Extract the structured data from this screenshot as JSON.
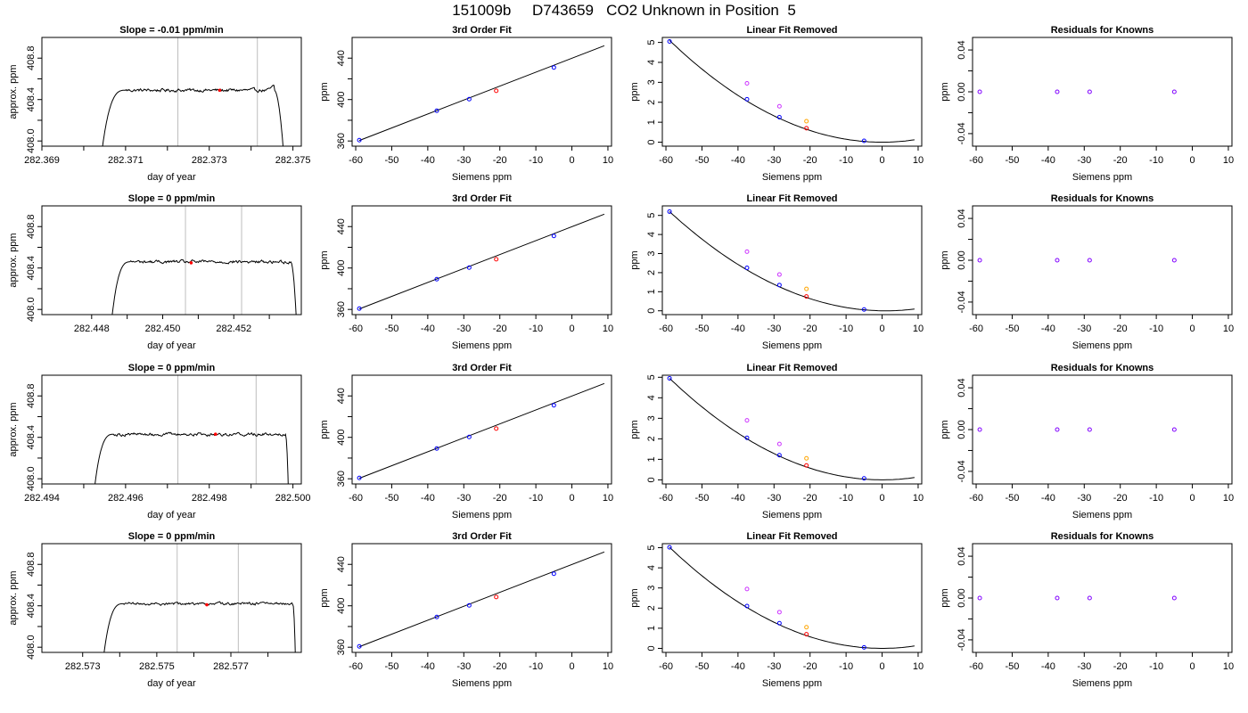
{
  "title": "151009b     D743659   CO2 Unknown in Position  5",
  "colors": {
    "trace": "#000000",
    "fit_line": "#000000",
    "known": "#0000ff",
    "unknown": "#ff0000",
    "raw_magenta": "#cc33ff",
    "raw_orange": "#ffa500",
    "residual": "#8000ff",
    "window_line": "#bebebe"
  },
  "chart_data": [
    {
      "type": "line",
      "panel": "trace",
      "row": 1,
      "title": "Slope =  -0.01  ppm/min",
      "xlabel": "day of year",
      "ylabel": "approx. ppm",
      "xlim": [
        282.369,
        282.3752
      ],
      "ylim": [
        407.95,
        409.0
      ],
      "xticks": [
        282.369,
        282.37,
        282.371,
        282.372,
        282.373,
        282.374,
        282.375
      ],
      "xtick_labels": [
        "282.369",
        "",
        "282.371",
        "",
        "282.373",
        "",
        "282.375"
      ],
      "yticks": [
        408.0,
        408.2,
        408.4,
        408.6,
        408.8
      ],
      "ytick_labels": [
        "408.0",
        "",
        "408.4",
        "",
        "408.8"
      ],
      "start": 282.37045,
      "rise_end": 282.371,
      "plateau_end": 282.37455,
      "end": 282.3748,
      "level": 408.49,
      "base": 407.95,
      "noise": 0.012,
      "bump": 0.04,
      "window": [
        282.37225,
        282.37415
      ],
      "marker": {
        "x": 282.37325,
        "y": 408.49
      }
    },
    {
      "type": "scatter",
      "panel": "fit",
      "row": 1,
      "title": "3rd Order Fit",
      "xlabel": "Siemens ppm",
      "ylabel": "ppm",
      "xlim": [
        -61,
        11
      ],
      "ylim": [
        355,
        460
      ],
      "xticks": [
        -60,
        -50,
        -40,
        -30,
        -20,
        -10,
        0,
        10
      ],
      "xtick_labels": [
        "-60",
        "-50",
        "-40",
        "-30",
        "-20",
        "-10",
        "0",
        "10"
      ],
      "yticks": [
        360,
        380,
        400,
        420,
        440
      ],
      "ytick_labels": [
        "360",
        "",
        "400",
        "",
        "440"
      ],
      "line": {
        "x": [
          -59,
          9
        ],
        "y": [
          360.5,
          452
        ]
      },
      "known": {
        "x": [
          -59,
          -37.5,
          -28.5,
          -5
        ],
        "y": [
          360.8,
          389.2,
          400.4,
          431.0
        ]
      },
      "unknown": {
        "x": [
          -21
        ],
        "y": [
          408.5
        ]
      }
    },
    {
      "type": "scatter",
      "panel": "linear-removed",
      "row": 1,
      "title": "Linear Fit Removed",
      "xlabel": "Siemens ppm",
      "ylabel": "ppm",
      "xlim": [
        -61,
        11
      ],
      "ylim": [
        -0.2,
        5.25
      ],
      "xticks": [
        -60,
        -50,
        -40,
        -30,
        -20,
        -10,
        0,
        10
      ],
      "xtick_labels": [
        "-60",
        "-50",
        "-40",
        "-30",
        "-20",
        "-10",
        "0",
        "10"
      ],
      "yticks": [
        0,
        1,
        2,
        3,
        4,
        5
      ],
      "ytick_labels": [
        "0",
        "1",
        "2",
        "3",
        "4",
        "5"
      ],
      "curve": {
        "vertex": 0,
        "x0": -59,
        "y0": 5.1,
        "xend": 9
      },
      "known": {
        "x": [
          -59,
          -37.5,
          -28.5,
          -5
        ],
        "y": [
          5.05,
          2.15,
          1.25,
          0.07
        ]
      },
      "unknown": {
        "x": [
          -21
        ],
        "y": [
          0.7
        ]
      },
      "raw_magenta": {
        "x": [
          -37.5,
          -28.5
        ],
        "y": [
          2.95,
          1.8
        ]
      },
      "raw_orange": {
        "x": [
          -21
        ],
        "y": [
          1.05
        ]
      }
    },
    {
      "type": "scatter",
      "panel": "residuals",
      "row": 1,
      "title": "Residuals for Knowns",
      "xlabel": "Siemens ppm",
      "ylabel": "ppm",
      "xlim": [
        -61,
        11
      ],
      "ylim": [
        -0.052,
        0.052
      ],
      "xticks": [
        -60,
        -50,
        -40,
        -30,
        -20,
        -10,
        0,
        10
      ],
      "xtick_labels": [
        "-60",
        "-50",
        "-40",
        "-30",
        "-20",
        "-10",
        "0",
        "10"
      ],
      "yticks": [
        -0.04,
        -0.02,
        0.0,
        0.02,
        0.04
      ],
      "ytick_labels": [
        "-0.04",
        "",
        "0.00",
        "",
        "0.04"
      ],
      "points": {
        "x": [
          -59,
          -37.5,
          -28.5,
          -5
        ],
        "y": [
          0,
          0,
          0,
          0
        ]
      }
    },
    {
      "type": "line",
      "panel": "trace",
      "row": 2,
      "title": "Slope =  0  ppm/min",
      "xlabel": "day of year",
      "ylabel": "approx. ppm",
      "xlim": [
        282.4466,
        282.4539
      ],
      "ylim": [
        407.95,
        409.0
      ],
      "xticks": [
        282.448,
        282.449,
        282.45,
        282.451,
        282.452,
        282.453
      ],
      "xtick_labels": [
        "282.448",
        "",
        "282.450",
        "",
        "282.452",
        ""
      ],
      "yticks": [
        408.0,
        408.2,
        408.4,
        408.6,
        408.8
      ],
      "ytick_labels": [
        "408.0",
        "",
        "408.4",
        "",
        "408.8"
      ],
      "start": 282.44858,
      "rise_end": 282.4491,
      "plateau_end": 282.4536,
      "end": 282.45378,
      "level": 408.46,
      "base": 407.95,
      "noise": 0.012,
      "bump": 0.0,
      "window": [
        282.45064,
        282.45222
      ],
      "marker": {
        "x": 282.4508,
        "y": 408.45
      }
    },
    {
      "type": "scatter",
      "panel": "fit",
      "row": 2,
      "title": "3rd Order Fit",
      "xlabel": "Siemens ppm",
      "ylabel": "ppm",
      "xlim": [
        -61,
        11
      ],
      "ylim": [
        355,
        460
      ],
      "xticks": [
        -60,
        -50,
        -40,
        -30,
        -20,
        -10,
        0,
        10
      ],
      "xtick_labels": [
        "-60",
        "-50",
        "-40",
        "-30",
        "-20",
        "-10",
        "0",
        "10"
      ],
      "yticks": [
        360,
        380,
        400,
        420,
        440
      ],
      "ytick_labels": [
        "360",
        "",
        "400",
        "",
        "440"
      ],
      "line": {
        "x": [
          -59,
          9
        ],
        "y": [
          360.5,
          452
        ]
      },
      "known": {
        "x": [
          -59,
          -37.5,
          -28.5,
          -5
        ],
        "y": [
          360.8,
          389.2,
          400.4,
          431.0
        ]
      },
      "unknown": {
        "x": [
          -21
        ],
        "y": [
          408.5
        ]
      }
    },
    {
      "type": "scatter",
      "panel": "linear-removed",
      "row": 2,
      "title": "Linear Fit Removed",
      "xlabel": "Siemens ppm",
      "ylabel": "ppm",
      "xlim": [
        -61,
        11
      ],
      "ylim": [
        -0.2,
        5.5
      ],
      "xticks": [
        -60,
        -50,
        -40,
        -30,
        -20,
        -10,
        0,
        10
      ],
      "xtick_labels": [
        "-60",
        "-50",
        "-40",
        "-30",
        "-20",
        "-10",
        "0",
        "10"
      ],
      "yticks": [
        0,
        1,
        2,
        3,
        4,
        5
      ],
      "ytick_labels": [
        "0",
        "1",
        "2",
        "3",
        "4",
        "5"
      ],
      "curve": {
        "vertex": 1,
        "x0": -59,
        "y0": 5.2,
        "xend": 9
      },
      "known": {
        "x": [
          -59,
          -37.5,
          -28.5,
          -5
        ],
        "y": [
          5.2,
          2.25,
          1.35,
          0.07
        ]
      },
      "unknown": {
        "x": [
          -21
        ],
        "y": [
          0.75
        ]
      },
      "raw_magenta": {
        "x": [
          -37.5,
          -28.5
        ],
        "y": [
          3.1,
          1.9
        ]
      },
      "raw_orange": {
        "x": [
          -21
        ],
        "y": [
          1.15
        ]
      }
    },
    {
      "type": "scatter",
      "panel": "residuals",
      "row": 2,
      "title": "Residuals for Knowns",
      "xlabel": "Siemens ppm",
      "ylabel": "ppm",
      "xlim": [
        -61,
        11
      ],
      "ylim": [
        -0.052,
        0.052
      ],
      "xticks": [
        -60,
        -50,
        -40,
        -30,
        -20,
        -10,
        0,
        10
      ],
      "xtick_labels": [
        "-60",
        "-50",
        "-40",
        "-30",
        "-20",
        "-10",
        "0",
        "10"
      ],
      "yticks": [
        -0.04,
        -0.02,
        0.0,
        0.02,
        0.04
      ],
      "ytick_labels": [
        "-0.04",
        "",
        "0.00",
        "",
        "0.04"
      ],
      "points": {
        "x": [
          -59,
          -37.5,
          -28.5,
          -5
        ],
        "y": [
          0,
          0,
          0,
          0
        ]
      }
    },
    {
      "type": "line",
      "panel": "trace",
      "row": 3,
      "title": "Slope =  0  ppm/min",
      "xlabel": "day of year",
      "ylabel": "approx. ppm",
      "xlim": [
        282.494,
        282.5002
      ],
      "ylim": [
        407.95,
        409.0
      ],
      "xticks": [
        282.494,
        282.495,
        282.496,
        282.497,
        282.498,
        282.499,
        282.5
      ],
      "xtick_labels": [
        "282.494",
        "",
        "282.496",
        "",
        "282.498",
        "",
        "282.500"
      ],
      "yticks": [
        408.0,
        408.2,
        408.4,
        408.6,
        408.8
      ],
      "ytick_labels": [
        "408.0",
        "",
        "408.4",
        "",
        "408.8"
      ],
      "start": 282.49527,
      "rise_end": 282.49572,
      "plateau_end": 282.49982,
      "end": 282.4999,
      "level": 408.43,
      "base": 407.95,
      "noise": 0.012,
      "bump": 0.0,
      "window": [
        282.49725,
        282.49912
      ],
      "marker": {
        "x": 282.49815,
        "y": 408.43
      }
    },
    {
      "type": "scatter",
      "panel": "fit",
      "row": 3,
      "title": "3rd Order Fit",
      "xlabel": "Siemens ppm",
      "ylabel": "ppm",
      "xlim": [
        -61,
        11
      ],
      "ylim": [
        355,
        460
      ],
      "xticks": [
        -60,
        -50,
        -40,
        -30,
        -20,
        -10,
        0,
        10
      ],
      "xtick_labels": [
        "-60",
        "-50",
        "-40",
        "-30",
        "-20",
        "-10",
        "0",
        "10"
      ],
      "yticks": [
        360,
        380,
        400,
        420,
        440
      ],
      "ytick_labels": [
        "360",
        "",
        "400",
        "",
        "440"
      ],
      "line": {
        "x": [
          -59,
          9
        ],
        "y": [
          360.5,
          452
        ]
      },
      "known": {
        "x": [
          -59,
          -37.5,
          -28.5,
          -5
        ],
        "y": [
          360.8,
          389.2,
          400.4,
          431.0
        ]
      },
      "unknown": {
        "x": [
          -21
        ],
        "y": [
          408.5
        ]
      }
    },
    {
      "type": "scatter",
      "panel": "linear-removed",
      "row": 3,
      "title": "Linear Fit Removed",
      "xlabel": "Siemens ppm",
      "ylabel": "ppm",
      "xlim": [
        -61,
        11
      ],
      "ylim": [
        -0.2,
        5.1
      ],
      "xticks": [
        -60,
        -50,
        -40,
        -30,
        -20,
        -10,
        0,
        10
      ],
      "xtick_labels": [
        "-60",
        "-50",
        "-40",
        "-30",
        "-20",
        "-10",
        "0",
        "10"
      ],
      "yticks": [
        0,
        1,
        2,
        3,
        4,
        5
      ],
      "ytick_labels": [
        "0",
        "1",
        "2",
        "3",
        "4",
        "5"
      ],
      "curve": {
        "vertex": 0,
        "x0": -59,
        "y0": 4.95,
        "xend": 9
      },
      "known": {
        "x": [
          -59,
          -37.5,
          -28.5,
          -5
        ],
        "y": [
          4.95,
          2.05,
          1.2,
          0.07
        ]
      },
      "unknown": {
        "x": [
          -21
        ],
        "y": [
          0.7
        ]
      },
      "raw_magenta": {
        "x": [
          -37.5,
          -28.5
        ],
        "y": [
          2.9,
          1.75
        ]
      },
      "raw_orange": {
        "x": [
          -21
        ],
        "y": [
          1.05
        ]
      }
    },
    {
      "type": "scatter",
      "panel": "residuals",
      "row": 3,
      "title": "Residuals for Knowns",
      "xlabel": "Siemens ppm",
      "ylabel": "ppm",
      "xlim": [
        -61,
        11
      ],
      "ylim": [
        -0.052,
        0.052
      ],
      "xticks": [
        -60,
        -50,
        -40,
        -30,
        -20,
        -10,
        0,
        10
      ],
      "xtick_labels": [
        "-60",
        "-50",
        "-40",
        "-30",
        "-20",
        "-10",
        "0",
        "10"
      ],
      "yticks": [
        -0.04,
        -0.02,
        0.0,
        0.02,
        0.04
      ],
      "ytick_labels": [
        "-0.04",
        "",
        "0.00",
        "",
        "0.04"
      ],
      "points": {
        "x": [
          -59,
          -37.5,
          -28.5,
          -5
        ],
        "y": [
          0,
          0,
          0,
          0
        ]
      }
    },
    {
      "type": "line",
      "panel": "trace",
      "row": 4,
      "title": "Slope =  0  ppm/min",
      "xlabel": "day of year",
      "ylabel": "approx. ppm",
      "xlim": [
        282.5719,
        282.5789
      ],
      "ylim": [
        407.95,
        409.0
      ],
      "xticks": [
        282.573,
        282.574,
        282.575,
        282.576,
        282.577,
        282.578
      ],
      "xtick_labels": [
        "282.573",
        "",
        "282.575",
        "",
        "282.577",
        ""
      ],
      "yticks": [
        408.0,
        408.2,
        408.4,
        408.6,
        408.8
      ],
      "ytick_labels": [
        "408.0",
        "",
        "408.4",
        "",
        "408.8"
      ],
      "start": 282.57358,
      "rise_end": 282.5741,
      "plateau_end": 282.57867,
      "end": 282.57875,
      "level": 408.42,
      "base": 407.95,
      "noise": 0.01,
      "bump": 0.0,
      "window": [
        282.57555,
        282.5772
      ],
      "marker": {
        "x": 282.57635,
        "y": 408.41
      }
    },
    {
      "type": "scatter",
      "panel": "fit",
      "row": 4,
      "title": "3rd Order Fit",
      "xlabel": "Siemens ppm",
      "ylabel": "ppm",
      "xlim": [
        -61,
        11
      ],
      "ylim": [
        355,
        460
      ],
      "xticks": [
        -60,
        -50,
        -40,
        -30,
        -20,
        -10,
        0,
        10
      ],
      "xtick_labels": [
        "-60",
        "-50",
        "-40",
        "-30",
        "-20",
        "-10",
        "0",
        "10"
      ],
      "yticks": [
        360,
        380,
        400,
        420,
        440
      ],
      "ytick_labels": [
        "360",
        "",
        "400",
        "",
        "440"
      ],
      "line": {
        "x": [
          -59,
          9
        ],
        "y": [
          360.5,
          452
        ]
      },
      "known": {
        "x": [
          -59,
          -37.5,
          -28.5,
          -5
        ],
        "y": [
          360.8,
          389.2,
          400.4,
          431.0
        ]
      },
      "unknown": {
        "x": [
          -21
        ],
        "y": [
          408.5
        ]
      }
    },
    {
      "type": "scatter",
      "panel": "linear-removed",
      "row": 4,
      "title": "Linear Fit Removed",
      "xlabel": "Siemens ppm",
      "ylabel": "ppm",
      "xlim": [
        -61,
        11
      ],
      "ylim": [
        -0.2,
        5.2
      ],
      "xticks": [
        -60,
        -50,
        -40,
        -30,
        -20,
        -10,
        0,
        10
      ],
      "xtick_labels": [
        "-60",
        "-50",
        "-40",
        "-30",
        "-20",
        "-10",
        "0",
        "10"
      ],
      "yticks": [
        0,
        1,
        2,
        3,
        4,
        5
      ],
      "ytick_labels": [
        "0",
        "1",
        "2",
        "3",
        "4",
        "5"
      ],
      "curve": {
        "vertex": 0,
        "x0": -59,
        "y0": 5.02,
        "xend": 9
      },
      "known": {
        "x": [
          -59,
          -37.5,
          -28.5,
          -5
        ],
        "y": [
          5.02,
          2.1,
          1.25,
          0.05
        ]
      },
      "unknown": {
        "x": [
          -21
        ],
        "y": [
          0.7
        ]
      },
      "raw_magenta": {
        "x": [
          -37.5,
          -28.5
        ],
        "y": [
          2.95,
          1.8
        ]
      },
      "raw_orange": {
        "x": [
          -21
        ],
        "y": [
          1.05
        ]
      }
    },
    {
      "type": "scatter",
      "panel": "residuals",
      "row": 4,
      "title": "Residuals for Knowns",
      "xlabel": "Siemens ppm",
      "ylabel": "ppm",
      "xlim": [
        -61,
        11
      ],
      "ylim": [
        -0.052,
        0.052
      ],
      "xticks": [
        -60,
        -50,
        -40,
        -30,
        -20,
        -10,
        0,
        10
      ],
      "xtick_labels": [
        "-60",
        "-50",
        "-40",
        "-30",
        "-20",
        "-10",
        "0",
        "10"
      ],
      "yticks": [
        -0.04,
        -0.02,
        0.0,
        0.02,
        0.04
      ],
      "ytick_labels": [
        "-0.04",
        "",
        "0.00",
        "",
        "0.04"
      ],
      "points": {
        "x": [
          -59,
          -37.5,
          -28.5,
          -5
        ],
        "y": [
          0,
          0,
          0,
          0
        ]
      }
    }
  ]
}
